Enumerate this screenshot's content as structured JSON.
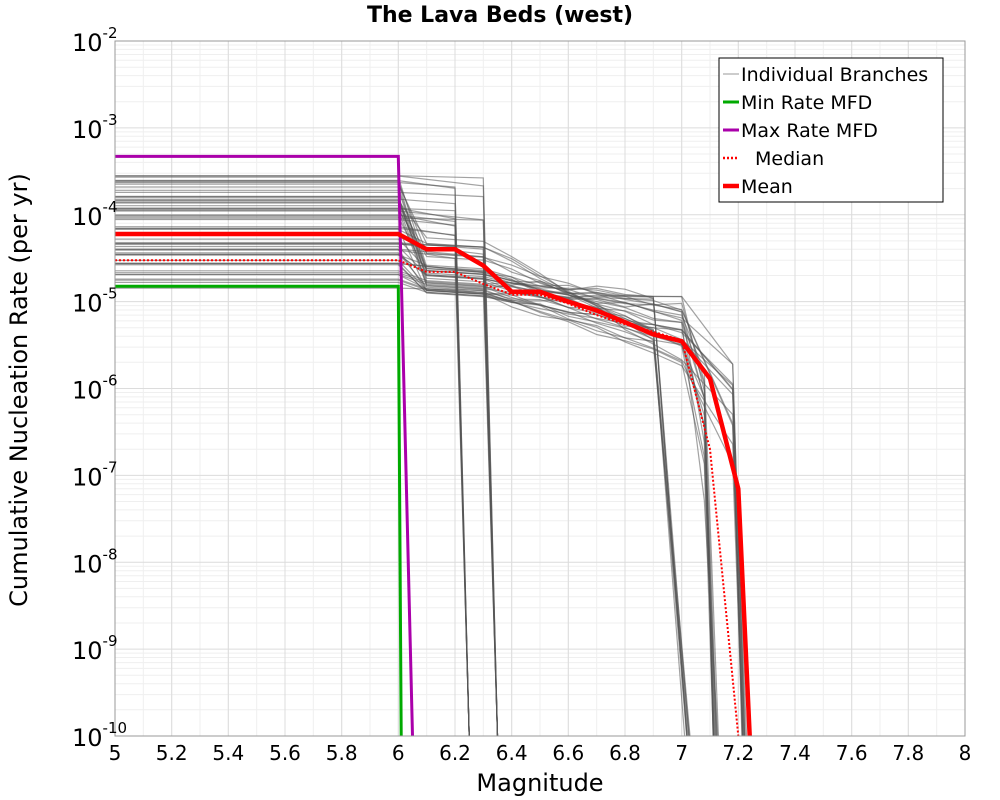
{
  "chart_data": {
    "type": "line",
    "title": "The Lava Beds (west)",
    "xlabel": "Magnitude",
    "ylabel": "Cumulative Nucleation Rate (per yr)",
    "xlim": [
      5,
      8
    ],
    "ylim": [
      1e-10,
      0.01
    ],
    "yscale": "log",
    "grid": true,
    "legend_position": "top-right",
    "x_ticks": [
      "5",
      "5.2",
      "5.4",
      "5.6",
      "5.8",
      "6",
      "6.2",
      "6.4",
      "6.6",
      "6.8",
      "7",
      "7.2",
      "7.4",
      "7.6",
      "7.8",
      "8"
    ],
    "y_ticks": [
      {
        "value": 0.01,
        "base": "10",
        "exp": "-2"
      },
      {
        "value": 0.001,
        "base": "10",
        "exp": "-3"
      },
      {
        "value": 0.0001,
        "base": "10",
        "exp": "-4"
      },
      {
        "value": 1e-05,
        "base": "10",
        "exp": "-5"
      },
      {
        "value": 1e-06,
        "base": "10",
        "exp": "-6"
      },
      {
        "value": 1e-07,
        "base": "10",
        "exp": "-7"
      },
      {
        "value": 1e-08,
        "base": "10",
        "exp": "-8"
      },
      {
        "value": 1e-09,
        "base": "10",
        "exp": "-9"
      },
      {
        "value": 1e-10,
        "base": "10",
        "exp": "-10"
      }
    ],
    "legend": [
      {
        "label": "Individual Branches",
        "color": "#999999",
        "style": "thin"
      },
      {
        "label": "Min Rate MFD",
        "color": "#00aa00",
        "style": "solid"
      },
      {
        "label": "Max Rate MFD",
        "color": "#aa00aa",
        "style": "solid"
      },
      {
        "label": "Median",
        "color": "#ff0000",
        "style": "dotted"
      },
      {
        "label": "Mean",
        "color": "#ff0000",
        "style": "thick"
      }
    ],
    "series": [
      {
        "name": "Max Rate MFD",
        "color": "#aa00aa",
        "x": [
          5.0,
          6.0,
          6.05
        ],
        "y": [
          0.00047,
          0.00047,
          1e-10
        ]
      },
      {
        "name": "Min Rate MFD",
        "color": "#00aa00",
        "x": [
          5.0,
          6.0,
          6.01
        ],
        "y": [
          1.5e-05,
          1.5e-05,
          1e-10
        ]
      },
      {
        "name": "Median",
        "color": "#ff0000",
        "x": [
          5.0,
          6.0,
          6.1,
          6.2,
          6.3,
          6.4,
          6.5,
          6.6,
          6.7,
          6.8,
          6.9,
          7.0,
          7.1,
          7.2
        ],
        "y": [
          3e-05,
          3e-05,
          2.2e-05,
          2.2e-05,
          1.6e-05,
          1.2e-05,
          1.2e-05,
          9.5e-06,
          7e-06,
          5.5e-06,
          4.5e-06,
          3.6e-06,
          2e-07,
          1e-10
        ]
      },
      {
        "name": "Mean",
        "color": "#ff0000",
        "x": [
          5.0,
          6.0,
          6.1,
          6.2,
          6.3,
          6.4,
          6.5,
          6.6,
          6.7,
          6.8,
          6.9,
          7.0,
          7.1,
          7.2,
          7.24
        ],
        "y": [
          6e-05,
          6e-05,
          4e-05,
          4e-05,
          2.6e-05,
          1.3e-05,
          1.3e-05,
          1e-05,
          7.9e-06,
          5.8e-06,
          4.2e-06,
          3.5e-06,
          1.3e-06,
          7e-08,
          1e-10
        ]
      }
    ],
    "branches": {
      "count": 60,
      "color": "#555555",
      "rate_at_m5_range": [
        1.3e-05,
        0.00031
      ],
      "tail_at_m6_5_range": [
        1.1e-05,
        5e-05
      ],
      "tail_at_m7_range": [
        2e-06,
        1.4e-05
      ],
      "max_magnitude_options": [
        6.2,
        6.3,
        7.0,
        7.1,
        7.2
      ]
    }
  }
}
